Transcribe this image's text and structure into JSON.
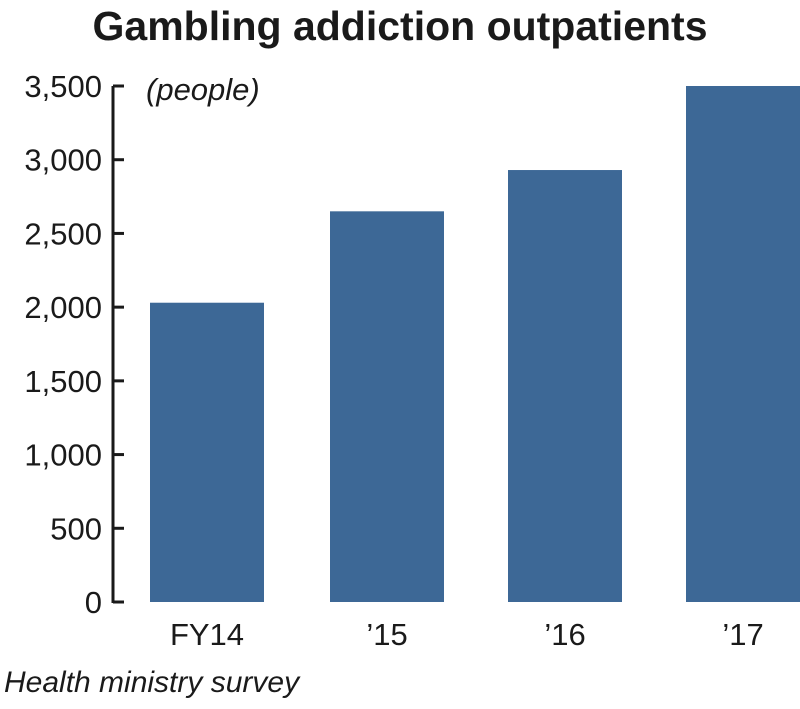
{
  "chart_data": {
    "type": "bar",
    "title": "Gambling addiction outpatients",
    "ylabel": "(people)",
    "xlabel": "",
    "categories": [
      "FY14",
      "’15",
      "’16",
      "’17"
    ],
    "values": [
      2030,
      2650,
      2930,
      3500
    ],
    "ylim": [
      0,
      3500
    ],
    "yticks": [
      0,
      500,
      1000,
      1500,
      2000,
      2500,
      3000,
      3500
    ],
    "ytick_labels": [
      "0",
      "500",
      "1,000",
      "1,500",
      "2,000",
      "2,500",
      "3,000",
      "3,500"
    ],
    "grid": false,
    "source": "Health ministry survey",
    "bar_color": "#3d6896"
  }
}
